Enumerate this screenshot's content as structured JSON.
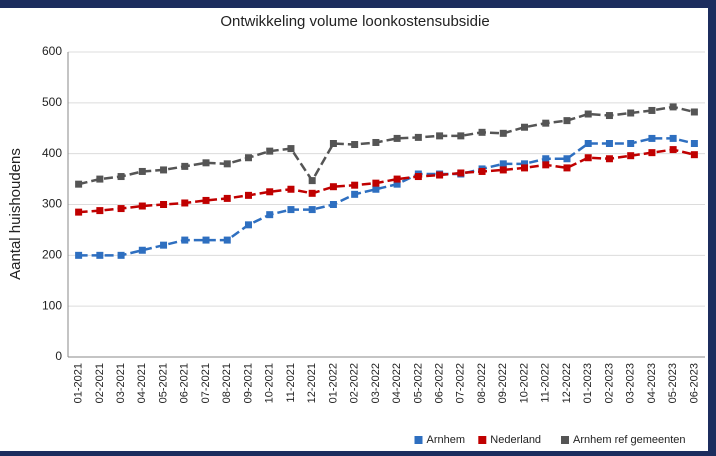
{
  "chart_data": {
    "type": "line",
    "title": "Ontwikkeling volume loonkostensubsidie",
    "y_label": "Aantal huishoudens",
    "categories": [
      "01-2021",
      "02-2021",
      "03-2021",
      "04-2021",
      "05-2021",
      "06-2021",
      "07-2021",
      "08-2021",
      "09-2021",
      "10-2021",
      "11-2021",
      "12-2021",
      "01-2022",
      "02-2022",
      "03-2022",
      "04-2022",
      "05-2022",
      "06-2022",
      "07-2022",
      "08-2022",
      "09-2022",
      "10-2022",
      "11-2022",
      "12-2022",
      "01-2023",
      "02-2023",
      "03-2023",
      "04-2023",
      "05-2023",
      "06-2023"
    ],
    "series": [
      {
        "name": "Arnhem",
        "color": "#2e6fc0",
        "values": [
          200,
          200,
          200,
          210,
          220,
          230,
          230,
          230,
          260,
          280,
          290,
          290,
          300,
          320,
          330,
          340,
          360,
          360,
          360,
          370,
          380,
          380,
          390,
          390,
          420,
          420,
          420,
          430,
          430,
          420
        ]
      },
      {
        "name": "Nederland",
        "color": "#c00000",
        "values": [
          285,
          288,
          292,
          297,
          300,
          303,
          308,
          312,
          318,
          325,
          330,
          322,
          335,
          338,
          342,
          350,
          355,
          358,
          362,
          365,
          368,
          372,
          378,
          372,
          392,
          390,
          396,
          402,
          408,
          398
        ]
      },
      {
        "name": "Arnhem ref gemeenten",
        "color": "#555555",
        "values": [
          340,
          350,
          355,
          365,
          368,
          375,
          382,
          380,
          392,
          405,
          410,
          347,
          420,
          418,
          422,
          430,
          432,
          435,
          435,
          442,
          440,
          452,
          460,
          465,
          478,
          475,
          480,
          485,
          492,
          482
        ]
      }
    ],
    "ylim": [
      0,
      600
    ],
    "yticks": [
      0,
      100,
      200,
      300,
      400,
      500,
      600
    ],
    "grid": true,
    "legend": "bottom-right"
  }
}
